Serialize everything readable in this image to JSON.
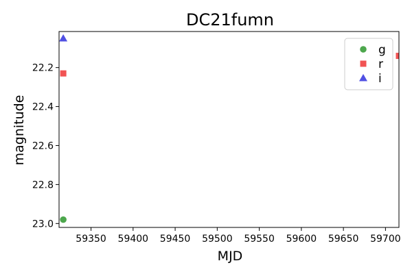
{
  "chart_data": {
    "type": "scatter",
    "title": "DC21fumn",
    "xlabel": "MJD",
    "ylabel": "magnitude",
    "xlim": [
      59312,
      59716
    ],
    "ylim": [
      23.02,
      22.015
    ],
    "y_inverted": true,
    "grid": false,
    "legend_position": "top-right",
    "x_ticks": [
      59350,
      59400,
      59450,
      59500,
      59550,
      59600,
      59650,
      59700
    ],
    "x_tick_labels": [
      "59350",
      "59400",
      "59450",
      "59500",
      "59550",
      "59600",
      "59650",
      "59700"
    ],
    "y_ticks": [
      22.2,
      22.4,
      22.6,
      22.8,
      23.0
    ],
    "y_tick_labels": [
      "22.2",
      "22.4",
      "22.6",
      "22.8",
      "23.0"
    ],
    "series": [
      {
        "name": "g",
        "marker": "circle",
        "color": "#3a9d3a",
        "points": [
          {
            "x": 59317,
            "y": 22.98
          }
        ]
      },
      {
        "name": "r",
        "marker": "square",
        "color": "#f04040",
        "points": [
          {
            "x": 59317,
            "y": 22.23
          },
          {
            "x": 59716,
            "y": 22.14
          }
        ]
      },
      {
        "name": "i",
        "marker": "triangle",
        "color": "#3d3de0",
        "points": [
          {
            "x": 59317,
            "y": 22.05
          }
        ]
      }
    ]
  }
}
